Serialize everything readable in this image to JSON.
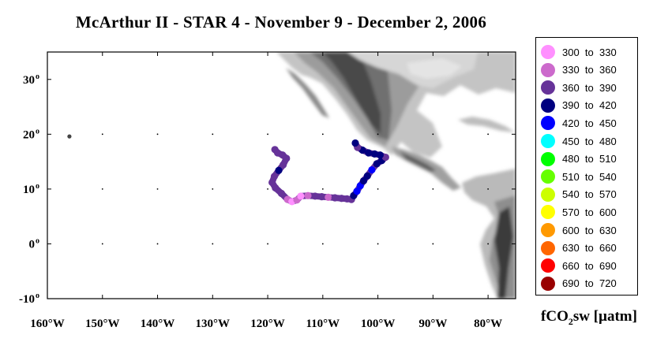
{
  "title": "McArthur II - STAR 4 - November 9 - December 2, 2006",
  "axes": {
    "x_ticks": [
      "160°W",
      "150°W",
      "140°W",
      "130°W",
      "120°W",
      "110°W",
      "100°W",
      "90°W",
      "80°W"
    ],
    "x_values": [
      -160,
      -150,
      -140,
      -130,
      -120,
      -110,
      -100,
      -90,
      -80
    ],
    "y_ticks": [
      "30",
      "20",
      "10",
      "0",
      "-10"
    ],
    "y_values": [
      30,
      20,
      10,
      0,
      -10
    ],
    "degree_mark": "o",
    "lon_range": [
      -160,
      -75
    ],
    "lat_range": [
      -10,
      35
    ]
  },
  "legend": {
    "title_main": "fCO",
    "title_sub": "2",
    "title_rest": "sw [µatm]",
    "items": [
      {
        "label": "300  to  330",
        "color": "#ff90ff"
      },
      {
        "label": "330  to  360",
        "color": "#cc6acc"
      },
      {
        "label": "360  to  390",
        "color": "#663399"
      },
      {
        "label": "390  to  420",
        "color": "#00007f"
      },
      {
        "label": "420  to  450",
        "color": "#0000ff"
      },
      {
        "label": "450  to  480",
        "color": "#00ffff"
      },
      {
        "label": "480  to  510",
        "color": "#00ff00"
      },
      {
        "label": "510  to  540",
        "color": "#66ff00"
      },
      {
        "label": "540  to  570",
        "color": "#ccff00"
      },
      {
        "label": "570  to  600",
        "color": "#ffff00"
      },
      {
        "label": "600  to  630",
        "color": "#ff9900"
      },
      {
        "label": "630  to  660",
        "color": "#ff6600"
      },
      {
        "label": "660  to  690",
        "color": "#ff0000"
      },
      {
        "label": "690  to  720",
        "color": "#990000"
      }
    ]
  },
  "cruise_track": [
    {
      "lon": -118.7,
      "lat": 17.2,
      "bin": 2
    },
    {
      "lon": -118.2,
      "lat": 16.6,
      "bin": 2
    },
    {
      "lon": -117.3,
      "lat": 16.2,
      "bin": 2
    },
    {
      "lon": -116.6,
      "lat": 15.6,
      "bin": 2
    },
    {
      "lon": -117.2,
      "lat": 14.4,
      "bin": 2
    },
    {
      "lon": -118.0,
      "lat": 13.4,
      "bin": 3
    },
    {
      "lon": -118.8,
      "lat": 12.3,
      "bin": 2
    },
    {
      "lon": -119.2,
      "lat": 11.2,
      "bin": 2
    },
    {
      "lon": -118.6,
      "lat": 10.2,
      "bin": 2
    },
    {
      "lon": -117.5,
      "lat": 9.2,
      "bin": 2
    },
    {
      "lon": -116.4,
      "lat": 8.1,
      "bin": 1
    },
    {
      "lon": -115.6,
      "lat": 7.7,
      "bin": 0
    },
    {
      "lon": -114.7,
      "lat": 8.0,
      "bin": 1
    },
    {
      "lon": -114.0,
      "lat": 8.7,
      "bin": 0
    },
    {
      "lon": -112.7,
      "lat": 8.8,
      "bin": 1
    },
    {
      "lon": -111.4,
      "lat": 8.7,
      "bin": 2
    },
    {
      "lon": -110.2,
      "lat": 8.6,
      "bin": 2
    },
    {
      "lon": -109.0,
      "lat": 8.5,
      "bin": 1
    },
    {
      "lon": -107.8,
      "lat": 8.4,
      "bin": 2
    },
    {
      "lon": -106.6,
      "lat": 8.3,
      "bin": 2
    },
    {
      "lon": -105.6,
      "lat": 8.2,
      "bin": 2
    },
    {
      "lon": -104.8,
      "lat": 8.1,
      "bin": 2
    },
    {
      "lon": -104.4,
      "lat": 8.8,
      "bin": 3
    },
    {
      "lon": -103.8,
      "lat": 9.6,
      "bin": 4
    },
    {
      "lon": -103.2,
      "lat": 10.6,
      "bin": 4
    },
    {
      "lon": -102.6,
      "lat": 11.5,
      "bin": 3
    },
    {
      "lon": -101.9,
      "lat": 12.4,
      "bin": 3
    },
    {
      "lon": -101.1,
      "lat": 13.5,
      "bin": 4
    },
    {
      "lon": -100.2,
      "lat": 14.6,
      "bin": 3
    },
    {
      "lon": -99.3,
      "lat": 15.2,
      "bin": 3
    },
    {
      "lon": -98.6,
      "lat": 15.8,
      "bin": 2
    },
    {
      "lon": -99.6,
      "lat": 16.2,
      "bin": 3
    },
    {
      "lon": -100.6,
      "lat": 16.4,
      "bin": 3
    },
    {
      "lon": -101.7,
      "lat": 16.6,
      "bin": 3
    },
    {
      "lon": -102.8,
      "lat": 17.1,
      "bin": 3
    },
    {
      "lon": -103.7,
      "lat": 17.6,
      "bin": 2
    },
    {
      "lon": -104.1,
      "lat": 18.4,
      "bin": 3
    }
  ],
  "stray_point": {
    "lon": -156.0,
    "lat": 19.6
  }
}
